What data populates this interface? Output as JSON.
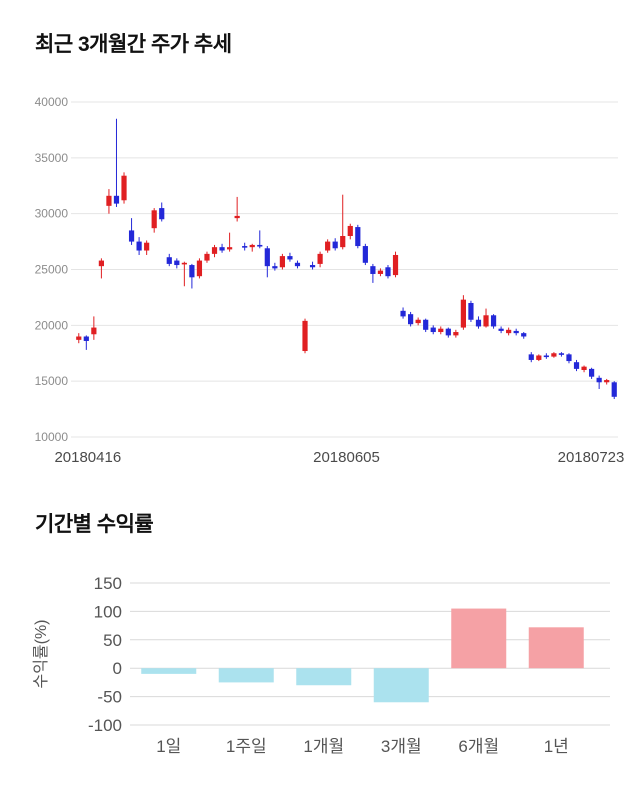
{
  "page": {
    "background": "#ffffff"
  },
  "chart_data": [
    {
      "type": "candlestick",
      "title": "최근 3개월간 주가 추세",
      "x_axis_labels": [
        "20180416",
        "20180605",
        "20180723"
      ],
      "y_ticks": [
        40000,
        35000,
        30000,
        25000,
        20000,
        15000,
        10000
      ],
      "ylim": [
        10000,
        40000
      ],
      "up_color": "#e01f22",
      "down_color": "#2328d8",
      "grid_color": "#e4e4e4",
      "axis_text_color": "#8c8c8c",
      "date_text_color": "#4a4a4a",
      "candle_format": "open,high,low,close",
      "candles": [
        [
          18700,
          19300,
          18400,
          19000
        ],
        [
          19000,
          19100,
          17800,
          18600
        ],
        [
          19200,
          20800,
          18700,
          19800
        ],
        [
          25300,
          26000,
          24200,
          25800
        ],
        [
          30700,
          32200,
          30000,
          31600
        ],
        [
          31600,
          38500,
          30600,
          30900
        ],
        [
          31200,
          33700,
          30900,
          33400
        ],
        [
          28500,
          29600,
          27200,
          27500
        ],
        [
          27500,
          27900,
          26300,
          26700
        ],
        [
          26700,
          27600,
          26300,
          27400
        ],
        [
          28700,
          30500,
          28300,
          30300
        ],
        [
          30500,
          31000,
          29300,
          29500
        ],
        [
          26100,
          26400,
          25300,
          25500
        ],
        [
          25800,
          26000,
          25100,
          25400
        ],
        [
          25500,
          25700,
          23500,
          25600
        ],
        [
          25400,
          25500,
          23300,
          24300
        ],
        [
          24400,
          26000,
          24200,
          25800
        ],
        [
          25800,
          26600,
          25600,
          26400
        ],
        [
          26400,
          27200,
          26100,
          27000
        ],
        [
          27000,
          27300,
          26500,
          26700
        ],
        [
          26800,
          28300,
          26600,
          27000
        ],
        [
          29600,
          31500,
          29300,
          29800
        ],
        [
          27100,
          27400,
          26700,
          27000
        ],
        [
          27000,
          27300,
          26600,
          27200
        ],
        [
          27200,
          28500,
          26900,
          27100
        ],
        [
          26900,
          27100,
          24300,
          25300
        ],
        [
          25300,
          25600,
          24900,
          25100
        ],
        [
          25200,
          26400,
          25000,
          26200
        ],
        [
          26200,
          26500,
          25700,
          25900
        ],
        [
          25600,
          25800,
          25100,
          25300
        ],
        [
          17700,
          20600,
          17500,
          20400
        ],
        [
          25400,
          25700,
          25000,
          25200
        ],
        [
          25500,
          26600,
          25200,
          26400
        ],
        [
          26700,
          27700,
          26500,
          27500
        ],
        [
          27500,
          27800,
          26700,
          26900
        ],
        [
          27000,
          31700,
          26800,
          28000
        ],
        [
          28000,
          29100,
          27700,
          28900
        ],
        [
          28800,
          29000,
          26900,
          27100
        ],
        [
          27100,
          27300,
          25400,
          25600
        ],
        [
          25300,
          25500,
          23800,
          24600
        ],
        [
          24600,
          25100,
          24400,
          24900
        ],
        [
          25200,
          25400,
          24200,
          24400
        ],
        [
          24500,
          26600,
          24300,
          26300
        ],
        [
          21300,
          21600,
          20600,
          20800
        ],
        [
          21000,
          21200,
          19900,
          20100
        ],
        [
          20200,
          20700,
          20000,
          20500
        ],
        [
          20500,
          20600,
          19400,
          19600
        ],
        [
          19800,
          20000,
          19200,
          19400
        ],
        [
          19400,
          19900,
          19200,
          19700
        ],
        [
          19700,
          19800,
          18900,
          19100
        ],
        [
          19100,
          19600,
          18900,
          19400
        ],
        [
          19800,
          22700,
          19600,
          22300
        ],
        [
          22000,
          22200,
          20300,
          20500
        ],
        [
          20500,
          20800,
          19700,
          19900
        ],
        [
          19900,
          21500,
          19800,
          20900
        ],
        [
          20900,
          21000,
          19700,
          19900
        ],
        [
          19700,
          19900,
          19300,
          19500
        ],
        [
          19300,
          19800,
          19100,
          19600
        ],
        [
          19500,
          19700,
          19100,
          19300
        ],
        [
          19300,
          19400,
          18800,
          19000
        ],
        [
          17400,
          17600,
          16700,
          16900
        ],
        [
          16900,
          17400,
          16800,
          17300
        ],
        [
          17300,
          17500,
          17000,
          17200
        ],
        [
          17200,
          17600,
          17100,
          17500
        ],
        [
          17500,
          17600,
          17200,
          17400
        ],
        [
          17400,
          17500,
          16600,
          16800
        ],
        [
          16700,
          16900,
          15900,
          16100
        ],
        [
          16000,
          16400,
          15800,
          16300
        ],
        [
          16100,
          16200,
          15200,
          15400
        ],
        [
          15300,
          15500,
          14300,
          14900
        ],
        [
          14900,
          15200,
          14700,
          15100
        ],
        [
          14900,
          15000,
          13400,
          13600
        ]
      ]
    },
    {
      "type": "bar",
      "title": "기간별 수익률",
      "ylabel": "수익률(%)",
      "categories": [
        "1일",
        "1주일",
        "1개월",
        "3개월",
        "6개월",
        "1년"
      ],
      "values": [
        -10,
        -25,
        -30,
        -60,
        105,
        72
      ],
      "ylim": [
        -100,
        150
      ],
      "y_ticks": [
        150,
        100,
        50,
        0,
        -50,
        -100
      ],
      "positive_color": "#f5a1a5",
      "negative_color": "#abe2ee",
      "grid_color": "#d9d9d9",
      "axis_text_color": "#555555"
    }
  ]
}
